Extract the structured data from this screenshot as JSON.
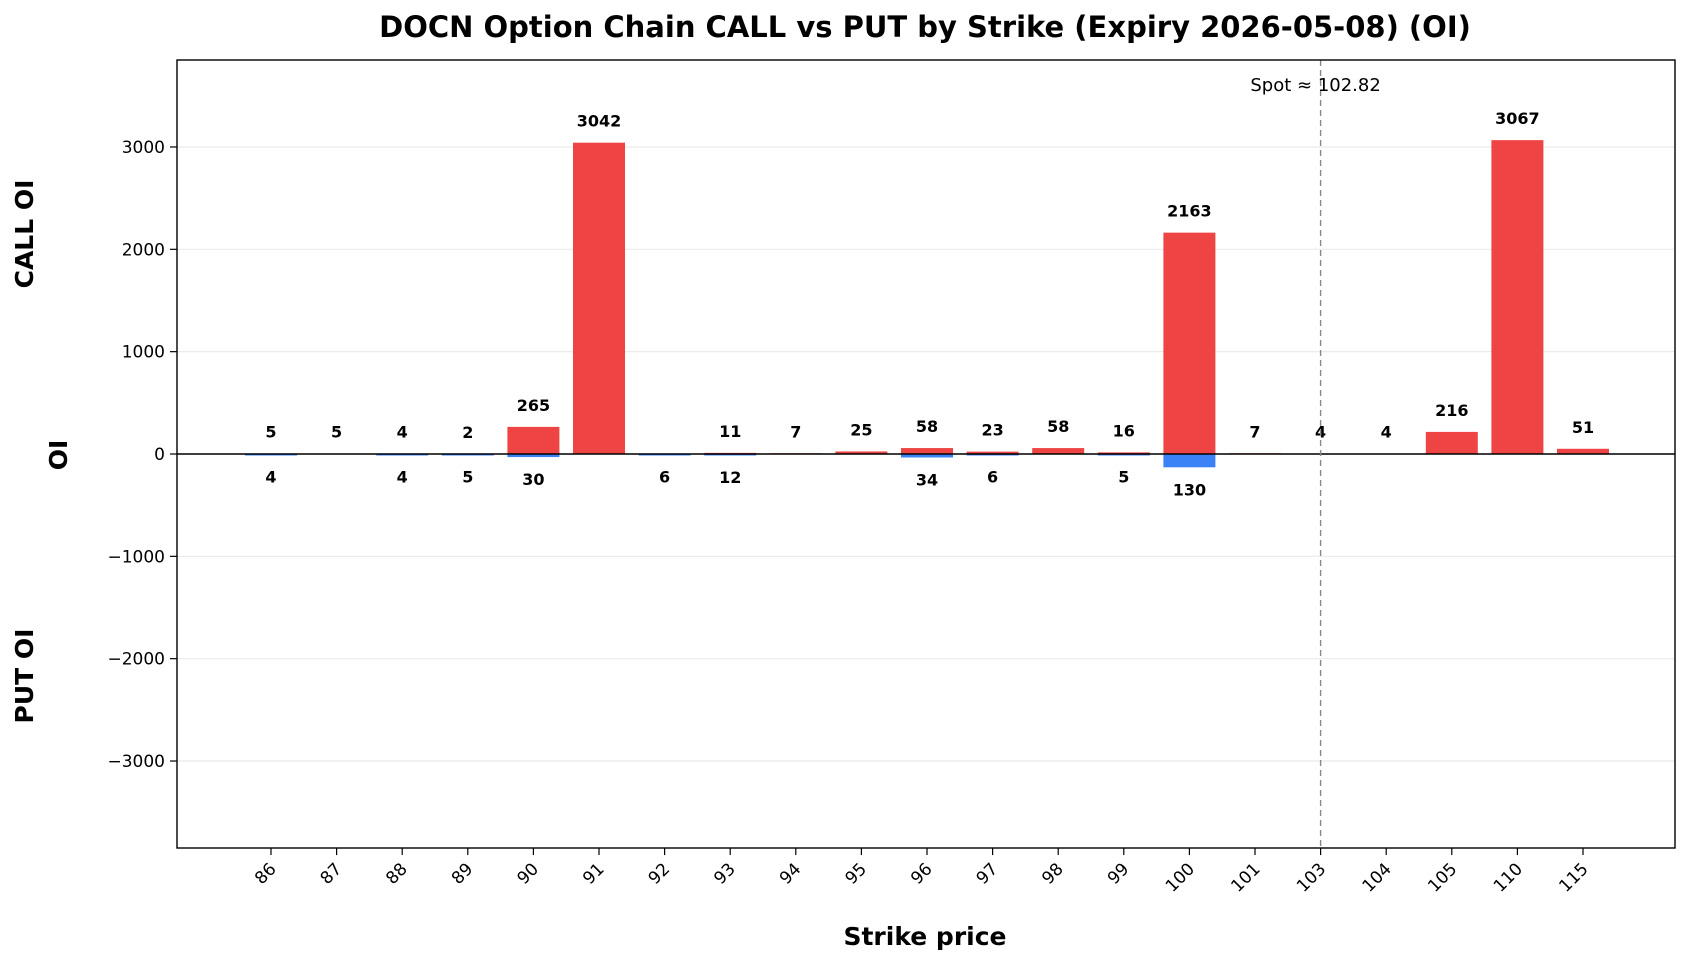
{
  "chart_data": {
    "type": "bar",
    "title": "DOCN Option Chain CALL vs PUT by Strike (Expiry 2026-05-08) (OI)",
    "xlabel": "Strike price",
    "ylabel": "OI",
    "ylabel_top": "CALL OI",
    "ylabel_bottom": "PUT OI",
    "ylim": [
      -3850,
      3850
    ],
    "yticks": [
      3000,
      2000,
      1000,
      0,
      -1000,
      -2000,
      -3000
    ],
    "ytick_labels": [
      "3000",
      "2000",
      "1000",
      "0",
      "−1000",
      "−2000",
      "−3000"
    ],
    "categories": [
      "86",
      "87",
      "88",
      "89",
      "90",
      "91",
      "92",
      "93",
      "94",
      "95",
      "96",
      "97",
      "98",
      "99",
      "100",
      "101",
      "103",
      "104",
      "105",
      "110",
      "115"
    ],
    "series": [
      {
        "name": "CALL",
        "color": "#ef4444",
        "values": [
          5,
          5,
          4,
          2,
          265,
          3042,
          0,
          11,
          7,
          25,
          58,
          23,
          58,
          16,
          2163,
          7,
          4,
          4,
          216,
          3067,
          51
        ],
        "labels": [
          "5",
          "5",
          "4",
          "2",
          "265",
          "3042",
          "",
          "11",
          "7",
          "25",
          "58",
          "23",
          "58",
          "16",
          "2163",
          "7",
          "4",
          "4",
          "216",
          "3067",
          "51"
        ]
      },
      {
        "name": "PUT",
        "color": "#3b82f6",
        "values": [
          4,
          0,
          4,
          5,
          30,
          0,
          6,
          12,
          0,
          0,
          34,
          6,
          0,
          5,
          130,
          0,
          0,
          0,
          0,
          0,
          0
        ],
        "labels": [
          "4",
          "",
          "4",
          "5",
          "30",
          "",
          "6",
          "12",
          "",
          "",
          "34",
          "6",
          "",
          "5",
          "130",
          "",
          "",
          "",
          "",
          "",
          ""
        ]
      }
    ],
    "spot": {
      "label": "Spot ≈ 102.82",
      "category_position": 16
    },
    "grid": "horizontal",
    "legend": "none"
  }
}
